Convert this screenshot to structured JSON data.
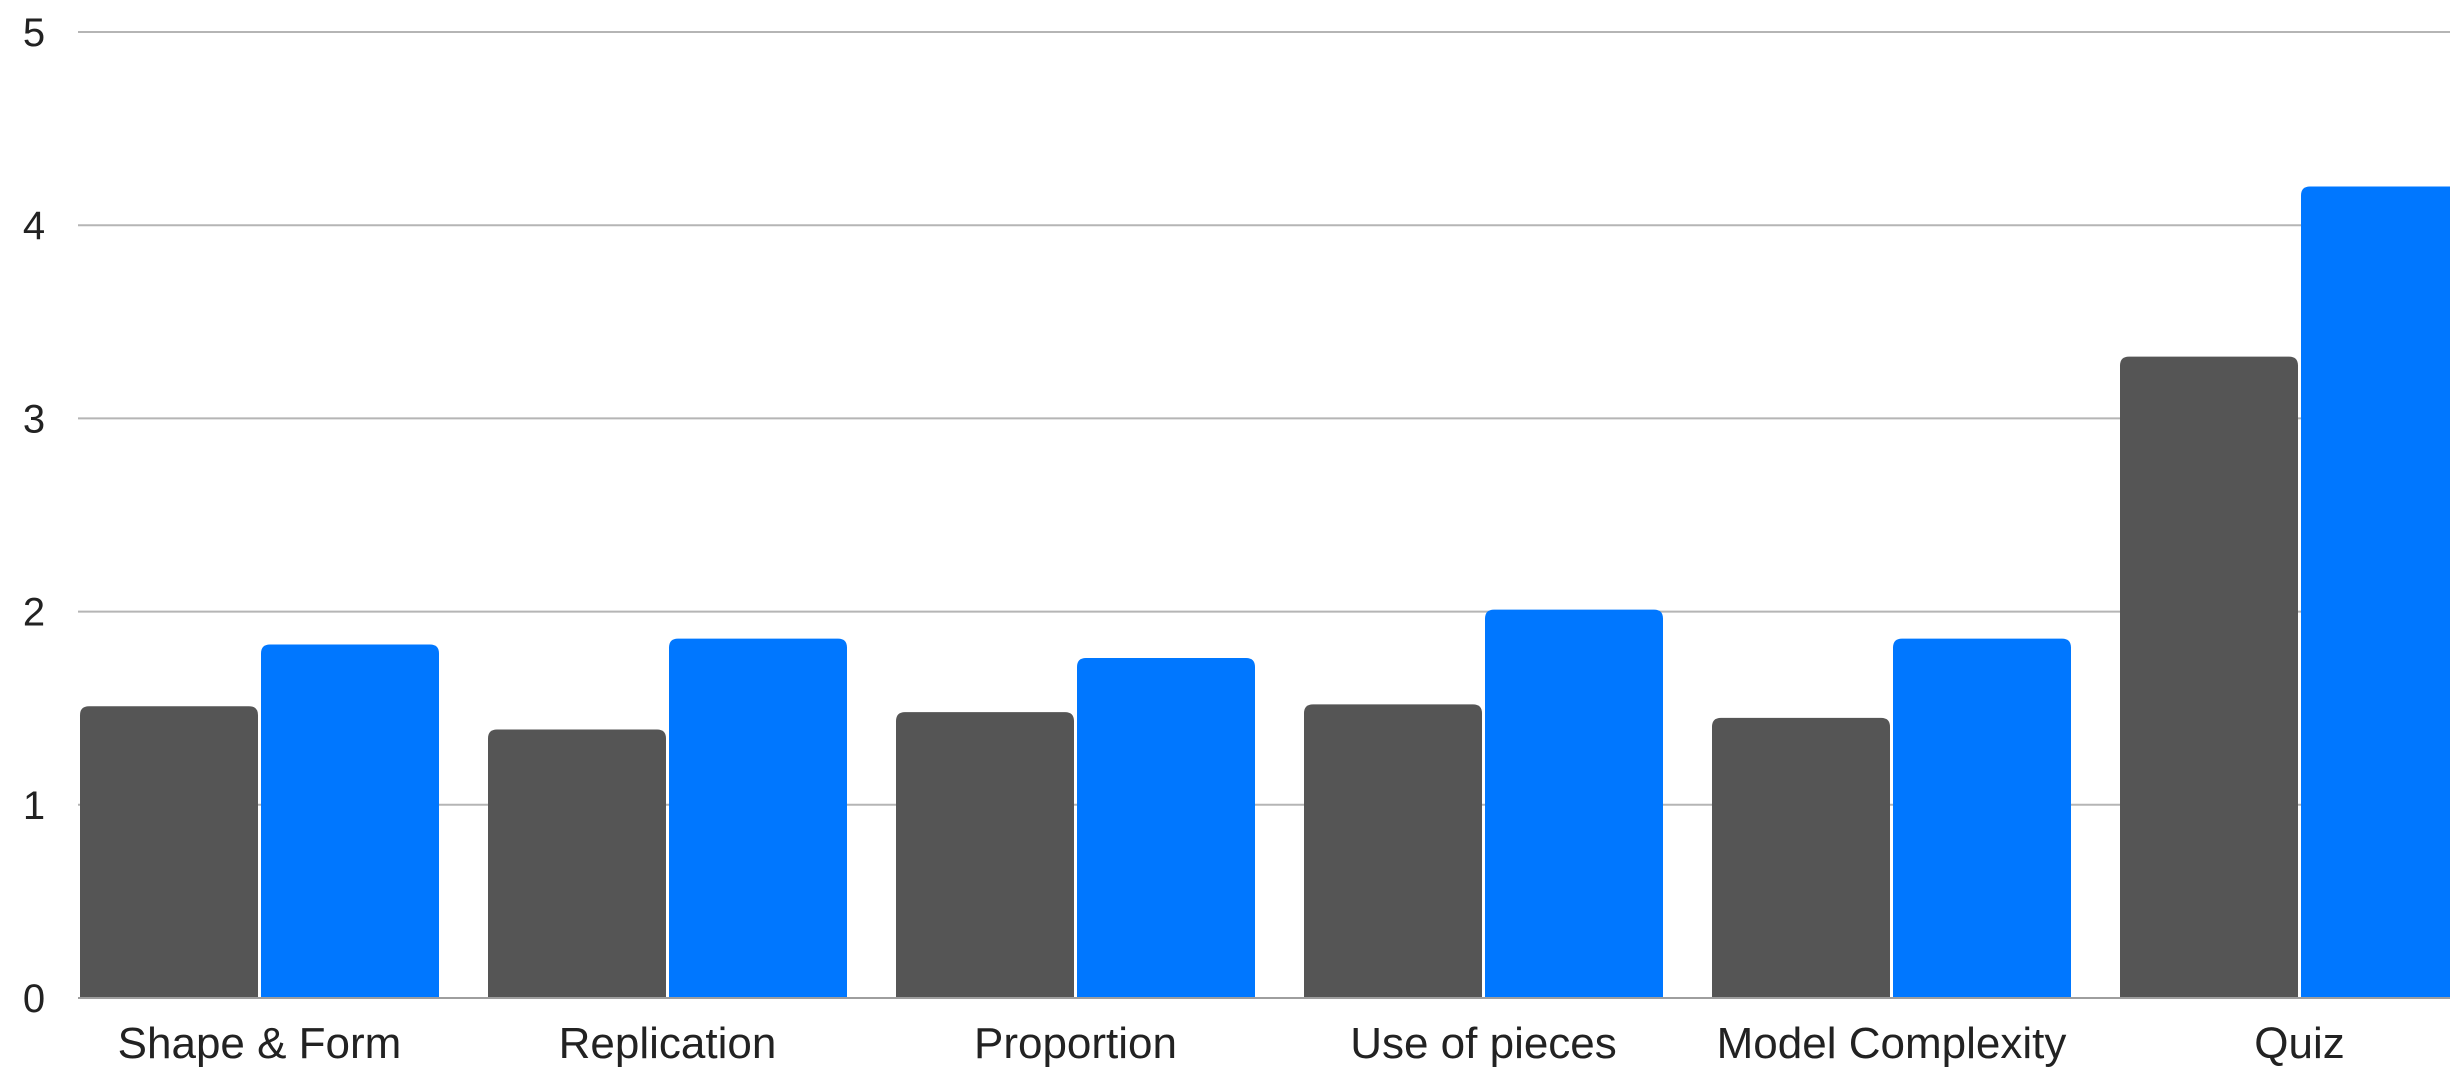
{
  "chart_data": {
    "type": "bar",
    "categories": [
      "Shape & Form",
      "Replication",
      "Proportion",
      "Use of pieces",
      "Model Complexity",
      "Quiz"
    ],
    "series": [
      {
        "values": [
          1.51,
          1.39,
          1.48,
          1.52,
          1.45,
          3.32
        ],
        "color": "#555555"
      },
      {
        "values": [
          1.83,
          1.86,
          1.76,
          2.01,
          1.86,
          4.2
        ],
        "color": "#0077ff"
      }
    ],
    "yticks": [
      "0",
      "1",
      "2",
      "3",
      "4",
      "5"
    ],
    "ylim": [
      0,
      5
    ],
    "grid": true,
    "legend": "none"
  }
}
